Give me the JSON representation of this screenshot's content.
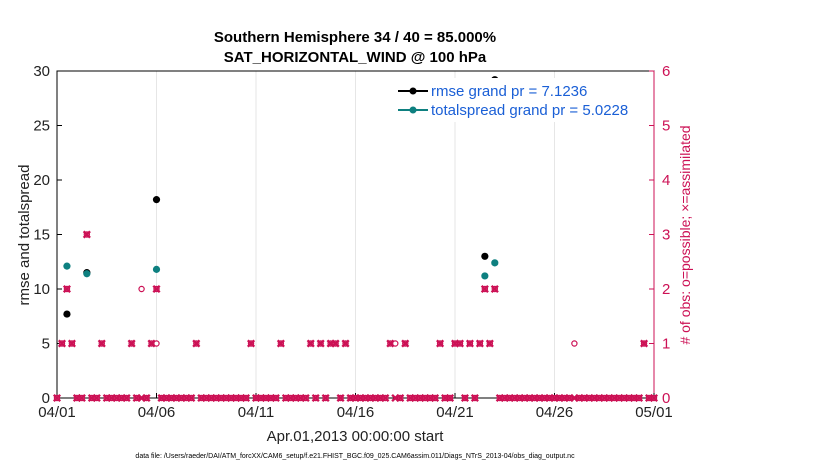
{
  "chart_data": {
    "type": "scatter",
    "title": "Southern Hemisphere 34 / 40 = 85.000%",
    "subtitle": "SAT_HORIZONTAL_WIND @ 100 hPa",
    "xlabel": "Apr.01,2013 00:00:00 start",
    "ylabel": "rmse and totalspread",
    "y2label": "# of obs: o=possible; ×=assimilated",
    "footer": "data file: /Users/raeder/DAI/ATM_forcXX/CAM6_setup/f.e21.FHIST_BGC.f09_025.CAM6assim.011/Diags_NTrS_2013-04/obs_diag_output.nc",
    "xlim": [
      0,
      30
    ],
    "ylim": [
      0,
      30
    ],
    "y2lim": [
      0,
      6
    ],
    "x_ticks": [
      0,
      5,
      10,
      15,
      20,
      25,
      30
    ],
    "x_tick_labels": [
      "04/01",
      "04/06",
      "04/11",
      "04/16",
      "04/21",
      "04/26",
      "05/01"
    ],
    "y_ticks": [
      0,
      5,
      10,
      15,
      20,
      25,
      30
    ],
    "y2_ticks": [
      0,
      1,
      2,
      3,
      4,
      5,
      6
    ],
    "legend": [
      {
        "name": "rmse grand pr = 7.1236",
        "color": "#000000"
      },
      {
        "name": "totalspread grand pr = 5.0228",
        "color": "#0e8080"
      }
    ],
    "series": [
      {
        "name": "rmse",
        "color": "#000000",
        "points": [
          [
            0.5,
            7.7
          ],
          [
            1.5,
            11.5
          ],
          [
            5.0,
            18.2
          ],
          [
            21.5,
            13.0
          ],
          [
            22.0,
            29.2
          ]
        ]
      },
      {
        "name": "totalspread",
        "color": "#0e8080",
        "points": [
          [
            0.5,
            12.1
          ],
          [
            1.5,
            11.4
          ],
          [
            5.0,
            11.8
          ],
          [
            21.5,
            11.2
          ],
          [
            22.0,
            12.4
          ]
        ]
      },
      {
        "name": "obs_possible",
        "color": "#cc1155",
        "points": [
          [
            0,
            0
          ],
          [
            0.25,
            1
          ],
          [
            0.5,
            2
          ],
          [
            0.75,
            1
          ],
          [
            1.0,
            0
          ],
          [
            1.25,
            0
          ],
          [
            1.5,
            3
          ],
          [
            1.75,
            0
          ],
          [
            2.0,
            0
          ],
          [
            2.25,
            1
          ],
          [
            2.5,
            0
          ],
          [
            2.75,
            0
          ],
          [
            3.0,
            0
          ],
          [
            3.25,
            0
          ],
          [
            3.5,
            0
          ],
          [
            3.75,
            1
          ],
          [
            4.0,
            0
          ],
          [
            4.25,
            2
          ],
          [
            4.5,
            0
          ],
          [
            4.75,
            1
          ],
          [
            5.0,
            1
          ],
          [
            5.0,
            2
          ],
          [
            5.25,
            0
          ],
          [
            5.5,
            0
          ],
          [
            5.75,
            0
          ],
          [
            6.0,
            0
          ],
          [
            6.25,
            0
          ],
          [
            6.5,
            0
          ],
          [
            6.75,
            0
          ],
          [
            7.0,
            1
          ],
          [
            7.25,
            0
          ],
          [
            7.5,
            0
          ],
          [
            7.75,
            0
          ],
          [
            8.0,
            0
          ],
          [
            8.25,
            0
          ],
          [
            8.5,
            0
          ],
          [
            8.75,
            0
          ],
          [
            9.0,
            0
          ],
          [
            9.25,
            0
          ],
          [
            9.5,
            0
          ],
          [
            9.75,
            1
          ],
          [
            10.0,
            0
          ],
          [
            10.25,
            0
          ],
          [
            10.5,
            0
          ],
          [
            10.75,
            0
          ],
          [
            11.0,
            0
          ],
          [
            11.25,
            1
          ],
          [
            11.5,
            0
          ],
          [
            11.75,
            0
          ],
          [
            12.0,
            0
          ],
          [
            12.25,
            0
          ],
          [
            12.5,
            0
          ],
          [
            12.75,
            1
          ],
          [
            13.0,
            0
          ],
          [
            13.25,
            1
          ],
          [
            13.5,
            0
          ],
          [
            13.75,
            1
          ],
          [
            14.0,
            1
          ],
          [
            14.25,
            0
          ],
          [
            14.5,
            1
          ],
          [
            14.75,
            0
          ],
          [
            15.0,
            0
          ],
          [
            15.25,
            0
          ],
          [
            15.5,
            0
          ],
          [
            15.75,
            0
          ],
          [
            16.0,
            0
          ],
          [
            16.25,
            0
          ],
          [
            16.5,
            0
          ],
          [
            16.75,
            1
          ],
          [
            17.0,
            1
          ],
          [
            17.25,
            0
          ],
          [
            17.5,
            1
          ],
          [
            17.75,
            0
          ],
          [
            18.0,
            0
          ],
          [
            18.25,
            0
          ],
          [
            18.5,
            0
          ],
          [
            18.75,
            0
          ],
          [
            19.0,
            0
          ],
          [
            19.25,
            1
          ],
          [
            19.5,
            0
          ],
          [
            19.75,
            0
          ],
          [
            20.0,
            1
          ],
          [
            20.25,
            1
          ],
          [
            20.5,
            0
          ],
          [
            20.75,
            1
          ],
          [
            21.0,
            0
          ],
          [
            21.25,
            1
          ],
          [
            21.5,
            2
          ],
          [
            21.75,
            1
          ],
          [
            22.0,
            2
          ],
          [
            22.25,
            0
          ],
          [
            22.5,
            0
          ],
          [
            22.75,
            0
          ],
          [
            23.0,
            0
          ],
          [
            23.25,
            0
          ],
          [
            23.5,
            0
          ],
          [
            23.75,
            0
          ],
          [
            24.0,
            0
          ],
          [
            24.25,
            0
          ],
          [
            24.5,
            0
          ],
          [
            24.75,
            0
          ],
          [
            25.0,
            0
          ],
          [
            25.25,
            0
          ],
          [
            25.5,
            0
          ],
          [
            25.75,
            0
          ],
          [
            26.0,
            1
          ],
          [
            26.25,
            0
          ],
          [
            26.5,
            0
          ],
          [
            26.75,
            0
          ],
          [
            27.0,
            0
          ],
          [
            27.25,
            0
          ],
          [
            27.5,
            0
          ],
          [
            27.75,
            0
          ],
          [
            28.0,
            0
          ],
          [
            28.25,
            0
          ],
          [
            28.5,
            0
          ],
          [
            28.75,
            0
          ],
          [
            29.0,
            0
          ],
          [
            29.25,
            0
          ],
          [
            29.5,
            1
          ],
          [
            29.75,
            0
          ],
          [
            30.0,
            0
          ]
        ]
      },
      {
        "name": "obs_assimilated",
        "color": "#cc1155",
        "points": [
          [
            0,
            0
          ],
          [
            0.25,
            1
          ],
          [
            0.5,
            2
          ],
          [
            0.75,
            1
          ],
          [
            1.0,
            0
          ],
          [
            1.25,
            0
          ],
          [
            1.5,
            3
          ],
          [
            1.75,
            0
          ],
          [
            2.0,
            0
          ],
          [
            2.25,
            1
          ],
          [
            2.5,
            0
          ],
          [
            2.75,
            0
          ],
          [
            3.0,
            0
          ],
          [
            3.25,
            0
          ],
          [
            3.5,
            0
          ],
          [
            3.75,
            1
          ],
          [
            4.0,
            0
          ],
          [
            4.25,
            0
          ],
          [
            4.5,
            0
          ],
          [
            4.75,
            1
          ],
          [
            5.0,
            2
          ],
          [
            5.25,
            0
          ],
          [
            5.5,
            0
          ],
          [
            5.75,
            0
          ],
          [
            6.0,
            0
          ],
          [
            6.25,
            0
          ],
          [
            6.5,
            0
          ],
          [
            6.75,
            0
          ],
          [
            7.0,
            1
          ],
          [
            7.25,
            0
          ],
          [
            7.5,
            0
          ],
          [
            7.75,
            0
          ],
          [
            8.0,
            0
          ],
          [
            8.25,
            0
          ],
          [
            8.5,
            0
          ],
          [
            8.75,
            0
          ],
          [
            9.0,
            0
          ],
          [
            9.25,
            0
          ],
          [
            9.5,
            0
          ],
          [
            9.75,
            1
          ],
          [
            10.0,
            0
          ],
          [
            10.25,
            0
          ],
          [
            10.5,
            0
          ],
          [
            10.75,
            0
          ],
          [
            11.0,
            0
          ],
          [
            11.25,
            1
          ],
          [
            11.5,
            0
          ],
          [
            11.75,
            0
          ],
          [
            12.0,
            0
          ],
          [
            12.25,
            0
          ],
          [
            12.5,
            0
          ],
          [
            12.75,
            1
          ],
          [
            13.0,
            0
          ],
          [
            13.25,
            1
          ],
          [
            13.5,
            0
          ],
          [
            13.75,
            1
          ],
          [
            14.0,
            1
          ],
          [
            14.25,
            0
          ],
          [
            14.5,
            1
          ],
          [
            14.75,
            0
          ],
          [
            15.0,
            0
          ],
          [
            15.25,
            0
          ],
          [
            15.5,
            0
          ],
          [
            15.75,
            0
          ],
          [
            16.0,
            0
          ],
          [
            16.25,
            0
          ],
          [
            16.5,
            0
          ],
          [
            16.75,
            1
          ],
          [
            17.0,
            0
          ],
          [
            17.25,
            0
          ],
          [
            17.5,
            1
          ],
          [
            17.75,
            0
          ],
          [
            18.0,
            0
          ],
          [
            18.25,
            0
          ],
          [
            18.5,
            0
          ],
          [
            18.75,
            0
          ],
          [
            19.0,
            0
          ],
          [
            19.25,
            1
          ],
          [
            19.5,
            0
          ],
          [
            19.75,
            0
          ],
          [
            20.0,
            1
          ],
          [
            20.25,
            1
          ],
          [
            20.5,
            0
          ],
          [
            20.75,
            1
          ],
          [
            21.0,
            0
          ],
          [
            21.25,
            1
          ],
          [
            21.5,
            2
          ],
          [
            21.75,
            1
          ],
          [
            22.0,
            2
          ],
          [
            22.25,
            0
          ],
          [
            22.5,
            0
          ],
          [
            22.75,
            0
          ],
          [
            23.0,
            0
          ],
          [
            23.25,
            0
          ],
          [
            23.5,
            0
          ],
          [
            23.75,
            0
          ],
          [
            24.0,
            0
          ],
          [
            24.25,
            0
          ],
          [
            24.5,
            0
          ],
          [
            24.75,
            0
          ],
          [
            25.0,
            0
          ],
          [
            25.25,
            0
          ],
          [
            25.5,
            0
          ],
          [
            25.75,
            0
          ],
          [
            26.0,
            0
          ],
          [
            26.25,
            0
          ],
          [
            26.5,
            0
          ],
          [
            26.75,
            0
          ],
          [
            27.0,
            0
          ],
          [
            27.25,
            0
          ],
          [
            27.5,
            0
          ],
          [
            27.75,
            0
          ],
          [
            28.0,
            0
          ],
          [
            28.25,
            0
          ],
          [
            28.5,
            0
          ],
          [
            28.75,
            0
          ],
          [
            29.0,
            0
          ],
          [
            29.25,
            0
          ],
          [
            29.5,
            1
          ],
          [
            29.75,
            0
          ],
          [
            30.0,
            0
          ]
        ]
      }
    ]
  }
}
